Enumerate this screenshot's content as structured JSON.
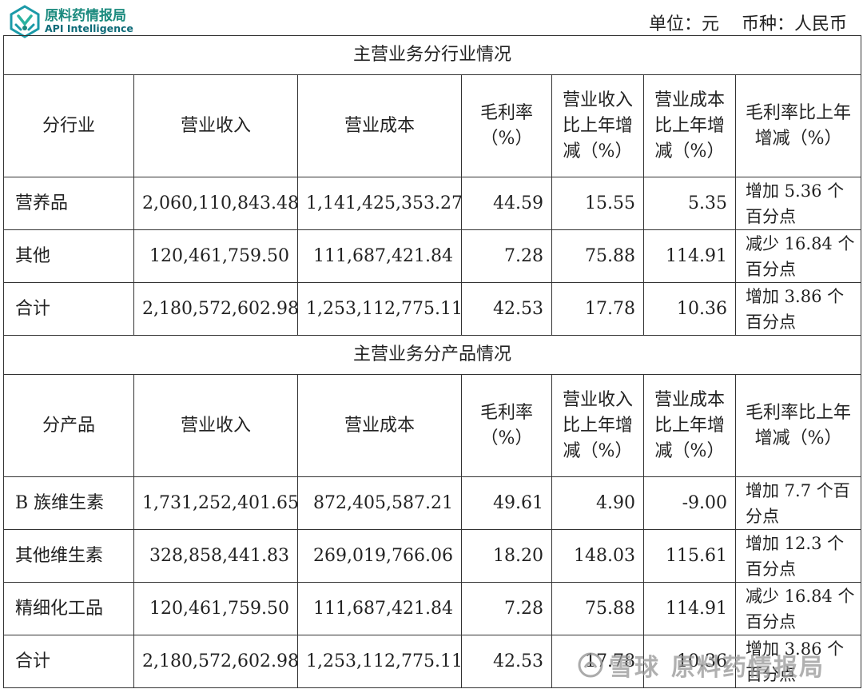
{
  "brand": {
    "name_cn": "原料药情报局",
    "name_en": "API Intelligence"
  },
  "unit_label": "单位：元",
  "currency_label": "币种：人民币",
  "industry": {
    "title": "主营业务分行业情况",
    "headers": [
      "分行业",
      "营业收入",
      "营业成本",
      "毛利率（%）",
      "营业收入比上年增减（%）",
      "营业成本比上年增减（%）",
      "毛利率比上年增减（%）"
    ],
    "rows": [
      {
        "name": "营养品",
        "revenue": "2,060,110,843.48",
        "cost": "1,141,425,353.27",
        "margin": "44.59",
        "rev_change": "15.55",
        "cost_change": "5.35",
        "margin_change": "增加 5.36 个百分点"
      },
      {
        "name": "其他",
        "revenue": "120,461,759.50",
        "cost": "111,687,421.84",
        "margin": "7.28",
        "rev_change": "75.88",
        "cost_change": "114.91",
        "margin_change": "减少 16.84 个百分点"
      },
      {
        "name": "合计",
        "revenue": "2,180,572,602.98",
        "cost": "1,253,112,775.11",
        "margin": "42.53",
        "rev_change": "17.78",
        "cost_change": "10.36",
        "margin_change": "增加 3.86 个百分点"
      }
    ]
  },
  "product": {
    "title": "主营业务分产品情况",
    "headers": [
      "分产品",
      "营业收入",
      "营业成本",
      "毛利率（%）",
      "营业收入比上年增减（%）",
      "营业成本比上年增减（%）",
      "毛利率比上年增减（%）"
    ],
    "rows": [
      {
        "name": "B 族维生素",
        "revenue": "1,731,252,401.65",
        "cost": "872,405,587.21",
        "margin": "49.61",
        "rev_change": "4.90",
        "cost_change": "-9.00",
        "margin_change": "增加 7.7 个百分点"
      },
      {
        "name": "其他维生素",
        "revenue": "328,858,441.83",
        "cost": "269,019,766.06",
        "margin": "18.20",
        "rev_change": "148.03",
        "cost_change": "115.61",
        "margin_change": "增加 12.3 个百分点"
      },
      {
        "name": "精细化工品",
        "revenue": "120,461,759.50",
        "cost": "111,687,421.84",
        "margin": "7.28",
        "rev_change": "75.88",
        "cost_change": "114.91",
        "margin_change": "减少 16.84 个百分点"
      },
      {
        "name": "合计",
        "revenue": "2,180,572,602.98",
        "cost": "1,253,112,775.11",
        "margin": "42.53",
        "rev_change": "17.78",
        "cost_change": "10.36",
        "margin_change": "增加 3.86 个百分点"
      }
    ]
  },
  "watermark": {
    "site": "雪球",
    "author": "原料药情报局"
  },
  "colors": {
    "logo_teal": "#1b8a7e",
    "logo_blue": "#0e6b78",
    "border": "#333333"
  },
  "icons": [
    "api-logo-icon",
    "snowball-icon"
  ]
}
